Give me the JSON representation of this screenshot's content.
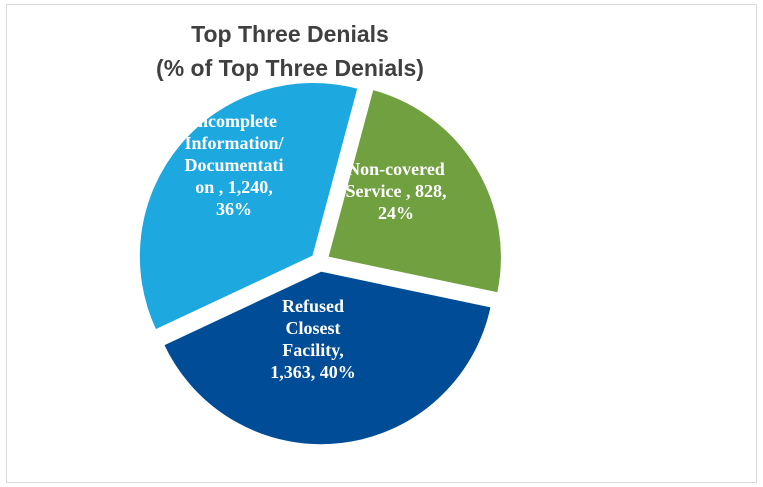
{
  "chart_data": {
    "type": "pie",
    "title": "Top Three Denials",
    "subtitle": "(% of Top Three Denials)",
    "slices": [
      {
        "category": "Non-covered Service",
        "value": 828,
        "percent": 24,
        "color": "#70A040",
        "label_lines": [
          "Non-covered",
          "Service , 828,",
          "24%"
        ]
      },
      {
        "category": "Refused Closest Facility",
        "value": 1363,
        "percent": 40,
        "color": "#004C97",
        "label_lines": [
          "Refused",
          "Closest",
          "Facility,",
          "1,363, 40%"
        ]
      },
      {
        "category": "Incomplete Information/ Documentation",
        "value": 1240,
        "percent": 36,
        "color": "#1EA8E0",
        "label_lines": [
          "Incomplete",
          "Information/",
          "Documentati",
          "on , 1,240,",
          "36%"
        ]
      }
    ],
    "legend": "none"
  }
}
